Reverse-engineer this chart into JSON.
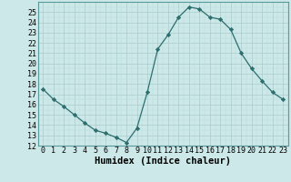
{
  "x": [
    0,
    1,
    2,
    3,
    4,
    5,
    6,
    7,
    8,
    9,
    10,
    11,
    12,
    13,
    14,
    15,
    16,
    17,
    18,
    19,
    20,
    21,
    22,
    23
  ],
  "y": [
    17.5,
    16.5,
    15.8,
    15.0,
    14.2,
    13.5,
    13.2,
    12.8,
    12.3,
    13.7,
    17.2,
    21.4,
    22.8,
    24.5,
    25.5,
    25.3,
    24.5,
    24.3,
    23.3,
    21.0,
    19.5,
    18.3,
    17.2,
    16.5
  ],
  "xlabel": "Humidex (Indice chaleur)",
  "ylim": [
    12,
    26
  ],
  "xlim": [
    -0.5,
    23.5
  ],
  "yticks": [
    12,
    13,
    14,
    15,
    16,
    17,
    18,
    19,
    20,
    21,
    22,
    23,
    24,
    25
  ],
  "xticks": [
    0,
    1,
    2,
    3,
    4,
    5,
    6,
    7,
    8,
    9,
    10,
    11,
    12,
    13,
    14,
    15,
    16,
    17,
    18,
    19,
    20,
    21,
    22,
    23
  ],
  "line_color": "#2d6e6e",
  "marker_color": "#2d6e6e",
  "bg_color": "#cce8e8",
  "grid_major_color": "#aacccc",
  "grid_minor_color": "#bbdddd",
  "xlabel_fontsize": 7.5,
  "tick_fontsize": 6.0
}
